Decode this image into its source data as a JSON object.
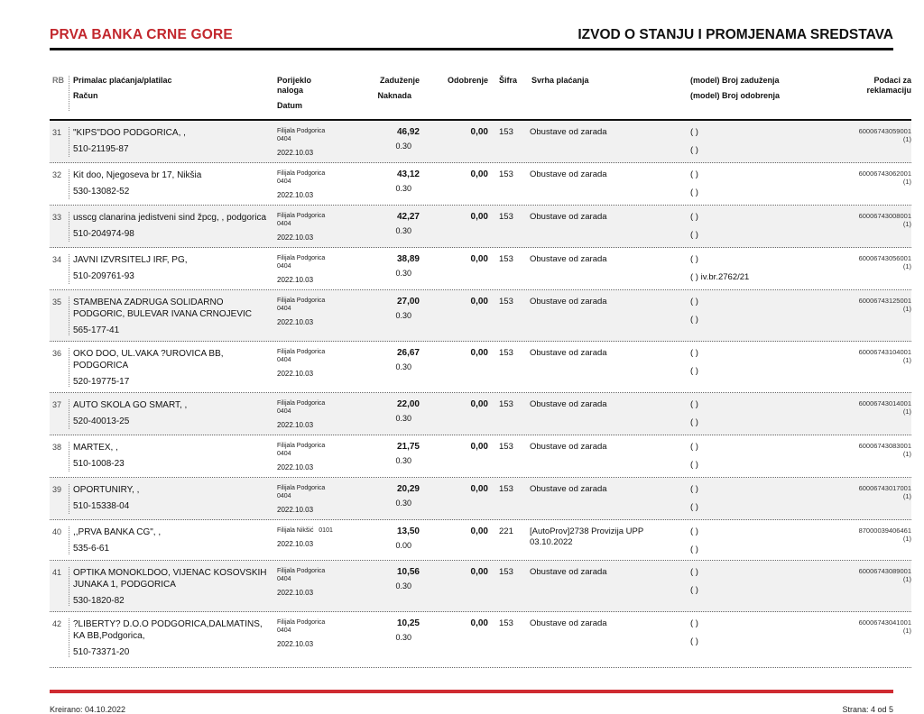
{
  "header": {
    "bank_name": "PRVA BANKA CRNE GORE",
    "doc_title": "IZVOD O STANJU I PROMJENAMA SREDSTAVA"
  },
  "columns": {
    "rb": "RB",
    "payee_line1": "Primalac plaćanja/platilac",
    "payee_line2": "Račun",
    "origin_line1": "Porijeklo\nnaloga",
    "origin_line2": "Datum",
    "debit_line1": "Zaduženje",
    "debit_line2": "Naknada",
    "credit": "Odobrenje",
    "code": "Šifra",
    "purpose": "Svrha plaćanja",
    "model_line1": "(model) Broj zaduženja",
    "model_line2": "(model) Broj odobrenja",
    "claim": "Podaci za\nreklamaciju"
  },
  "rows": [
    {
      "rb": "31",
      "name": "\"KIPS\"DOO PODGORICA, ,",
      "account": "510-21195-87",
      "branch": "Filijala Podgorica\n0404",
      "date": "2022.10.03",
      "debit": "46,92",
      "fee": "0.30",
      "credit": "0,00",
      "code": "153",
      "purpose": "Obustave od zarada",
      "model_debit": "( )",
      "model_credit": "( )",
      "claim": "60006743059001",
      "claim_sub": "(1)"
    },
    {
      "rb": "32",
      "name": "Kit doo, Njegoseva br 17, Nikšia",
      "account": "530-13082-52",
      "branch": "Filijala Podgorica\n0404",
      "date": "2022.10.03",
      "debit": "43,12",
      "fee": "0.30",
      "credit": "0,00",
      "code": "153",
      "purpose": "Obustave od zarada",
      "model_debit": "( )",
      "model_credit": "( )",
      "claim": "60006743062001",
      "claim_sub": "(1)"
    },
    {
      "rb": "33",
      "name": "usscg clanarina jedistveni sind žpcg, , podgorica",
      "account": "510-204974-98",
      "branch": "Filijala Podgorica\n0404",
      "date": "2022.10.03",
      "debit": "42,27",
      "fee": "0.30",
      "credit": "0,00",
      "code": "153",
      "purpose": "Obustave od zarada",
      "model_debit": "( )",
      "model_credit": "( )",
      "claim": "60006743008001",
      "claim_sub": "(1)"
    },
    {
      "rb": "34",
      "name": "JAVNI IZVRSITELJ IRF, PG,",
      "account": "510-209761-93",
      "branch": "Filijala Podgorica\n0404",
      "date": "2022.10.03",
      "debit": "38,89",
      "fee": "0.30",
      "credit": "0,00",
      "code": "153",
      "purpose": "Obustave od zarada",
      "model_debit": "( )",
      "model_credit": "( ) iv.br.2762/21",
      "claim": "60006743056001",
      "claim_sub": "(1)"
    },
    {
      "rb": "35",
      "name": "STAMBENA ZADRUGA SOLIDARNO\nPODGORIC, BULEVAR IVANA CRNOJEVIC",
      "account": "565-177-41",
      "branch": "Filijala Podgorica\n0404",
      "date": "2022.10.03",
      "debit": "27,00",
      "fee": "0.30",
      "credit": "0,00",
      "code": "153",
      "purpose": "Obustave od zarada",
      "model_debit": "( )",
      "model_credit": "( )",
      "claim": "60006743125001",
      "claim_sub": "(1)"
    },
    {
      "rb": "36",
      "name": "OKO DOO, UL.VAKA ?UROVICA BB,\nPODGORICA",
      "account": "520-19775-17",
      "branch": "Filijala Podgorica\n0404",
      "date": "2022.10.03",
      "debit": "26,67",
      "fee": "0.30",
      "credit": "0,00",
      "code": "153",
      "purpose": "Obustave od zarada",
      "model_debit": "( )",
      "model_credit": "( )",
      "claim": "60006743104001",
      "claim_sub": "(1)"
    },
    {
      "rb": "37",
      "name": "AUTO SKOLA GO SMART, ,",
      "account": "520-40013-25",
      "branch": "Filijala Podgorica\n0404",
      "date": "2022.10.03",
      "debit": "22,00",
      "fee": "0.30",
      "credit": "0,00",
      "code": "153",
      "purpose": "Obustave od zarada",
      "model_debit": "( )",
      "model_credit": "( )",
      "claim": "60006743014001",
      "claim_sub": "(1)"
    },
    {
      "rb": "38",
      "name": "MARTEX, ,",
      "account": "510-1008-23",
      "branch": "Filijala Podgorica\n0404",
      "date": "2022.10.03",
      "debit": "21,75",
      "fee": "0.30",
      "credit": "0,00",
      "code": "153",
      "purpose": "Obustave od zarada",
      "model_debit": "( )",
      "model_credit": "( )",
      "claim": "60006743083001",
      "claim_sub": "(1)"
    },
    {
      "rb": "39",
      "name": "OPORTUNIRY, ,",
      "account": "510-15338-04",
      "branch": "Filijala Podgorica\n0404",
      "date": "2022.10.03",
      "debit": "20,29",
      "fee": "0.30",
      "credit": "0,00",
      "code": "153",
      "purpose": "Obustave od zarada",
      "model_debit": "( )",
      "model_credit": "( )",
      "claim": "60006743017001",
      "claim_sub": "(1)"
    },
    {
      "rb": "40",
      "name": ",,PRVA BANKA CG\", ,",
      "account": "535-6-61",
      "branch": "Filijala Nikšić   0101",
      "date": "2022.10.03",
      "debit": "13,50",
      "fee": "0.00",
      "credit": "0,00",
      "code": "221",
      "purpose": "[AutoProv]2738 Provizija UPP\n03.10.2022",
      "model_debit": "( )",
      "model_credit": "( )",
      "claim": "87000039406461",
      "claim_sub": "(1)"
    },
    {
      "rb": "41",
      "name": "OPTIKA MONOKLDOO, VIJENAC KOSOVSKIH\nJUNAKA 1, PODGORICA",
      "account": "530-1820-82",
      "branch": "Filijala Podgorica\n0404",
      "date": "2022.10.03",
      "debit": "10,56",
      "fee": "0.30",
      "credit": "0,00",
      "code": "153",
      "purpose": "Obustave od zarada",
      "model_debit": "( )",
      "model_credit": "( )",
      "claim": "60006743089001",
      "claim_sub": "(1)"
    },
    {
      "rb": "42",
      "name": "?LIBERTY? D.O.O PODGORICA,DALMATINS,\nKA BB,Podgorica,",
      "account": "510-73371-20",
      "branch": "Filijala Podgorica\n0404",
      "date": "2022.10.03",
      "debit": "10,25",
      "fee": "0.30",
      "credit": "0,00",
      "code": "153",
      "purpose": "Obustave od zarada",
      "model_debit": "( )",
      "model_credit": "( )",
      "claim": "60006743041001",
      "claim_sub": "(1)"
    }
  ],
  "footer": {
    "created": "Kreirano: 04.10.2022",
    "page": "Strana: 4 od 5"
  },
  "colors": {
    "accent_red_text": "#c2272d",
    "accent_red_rule": "#cf2b31",
    "row_stripe": "#f1f1f1"
  }
}
